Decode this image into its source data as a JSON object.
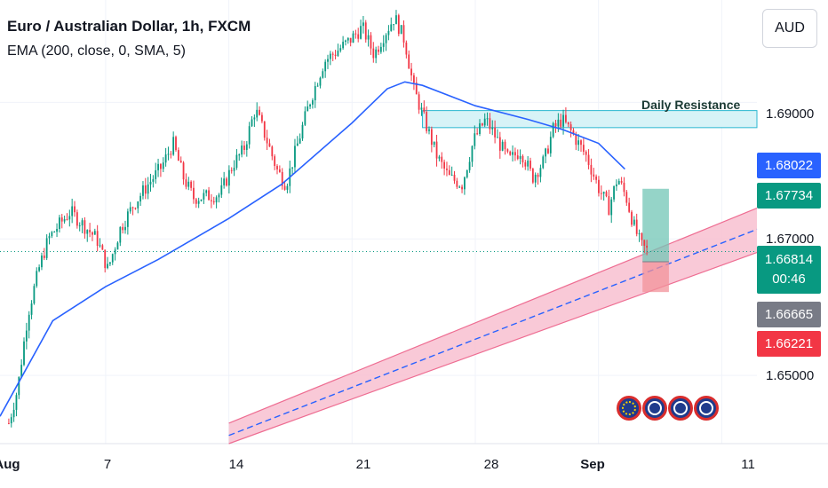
{
  "header": {
    "title": "Euro / Australian Dollar, 1h, FXCM",
    "indicator": "EMA (200, close, 0, SMA, 5)",
    "currency": "AUD"
  },
  "annotation": {
    "daily_resistance": "Daily Resistance"
  },
  "price_tags": {
    "ema": "1.68022",
    "target": "1.67734",
    "last": "1.66814",
    "countdown": "00:46",
    "entry": "1.66665",
    "stop": "1.66221"
  },
  "price_labels": [
    "1.69000",
    "1.67000",
    "1.65000"
  ],
  "time_labels": {
    "aug": "Aug",
    "d7": "7",
    "d14": "14",
    "d21": "21",
    "d28": "28",
    "sep": "Sep",
    "d11": "11"
  },
  "chart_data": {
    "type": "candlestick",
    "symbol": "EURAUD",
    "interval": "1h",
    "y_axis": {
      "min": 1.64,
      "max": 1.705
    },
    "x_axis": {
      "start": "2023-08-01",
      "end": "2023-09-13"
    },
    "path_points": [
      [
        "2023-08-01 12:00",
        1.643
      ],
      [
        "2023-08-02 00:00",
        1.648
      ],
      [
        "2023-08-02 14:00",
        1.659
      ],
      [
        "2023-08-03 06:00",
        1.666
      ],
      [
        "2023-08-03 18:00",
        1.67
      ],
      [
        "2023-08-04 08:00",
        1.672
      ],
      [
        "2023-08-05 00:00",
        1.674
      ],
      [
        "2023-08-06 12:00",
        1.67
      ],
      [
        "2023-08-07 03:00",
        1.6655
      ],
      [
        "2023-08-07 20:00",
        1.6715
      ],
      [
        "2023-08-08 14:00",
        1.675
      ],
      [
        "2023-08-09 10:00",
        1.678
      ],
      [
        "2023-08-10 04:00",
        1.6805
      ],
      [
        "2023-08-10 20:00",
        1.684
      ],
      [
        "2023-08-11 10:00",
        1.679
      ],
      [
        "2023-08-12 00:00",
        1.676
      ],
      [
        "2023-08-13 12:00",
        1.6765
      ],
      [
        "2023-08-14 06:00",
        1.681
      ],
      [
        "2023-08-14 20:00",
        1.683
      ],
      [
        "2023-08-15 12:00",
        1.689
      ],
      [
        "2023-08-16 02:00",
        1.685
      ],
      [
        "2023-08-16 18:00",
        1.68
      ],
      [
        "2023-08-17 06:00",
        1.678
      ],
      [
        "2023-08-17 22:00",
        1.684
      ],
      [
        "2023-08-18 14:00",
        1.69
      ],
      [
        "2023-08-19 10:00",
        1.696
      ],
      [
        "2023-08-20 20:00",
        1.699
      ],
      [
        "2023-08-21 14:00",
        1.701
      ],
      [
        "2023-08-22 06:00",
        1.697
      ],
      [
        "2023-08-22 20:00",
        1.7
      ],
      [
        "2023-08-23 10:00",
        1.7025
      ],
      [
        "2023-08-24 00:00",
        1.699
      ],
      [
        "2023-08-24 12:00",
        1.692
      ],
      [
        "2023-08-25 04:00",
        1.687
      ],
      [
        "2023-08-25 20:00",
        1.682
      ],
      [
        "2023-08-26 12:00",
        1.679
      ],
      [
        "2023-08-27 06:00",
        1.678
      ],
      [
        "2023-08-27 22:00",
        1.6845
      ],
      [
        "2023-08-28 14:00",
        1.6875
      ],
      [
        "2023-08-29 06:00",
        1.6845
      ],
      [
        "2023-08-29 22:00",
        1.6815
      ],
      [
        "2023-08-30 14:00",
        1.683
      ],
      [
        "2023-08-31 06:00",
        1.679
      ],
      [
        "2023-08-31 22:00",
        1.6815
      ],
      [
        "2023-09-01 10:00",
        1.686
      ],
      [
        "2023-09-01 22:00",
        1.6875
      ],
      [
        "2023-09-02 12:00",
        1.6855
      ],
      [
        "2023-09-03 08:00",
        1.682
      ],
      [
        "2023-09-04 00:00",
        1.6775
      ],
      [
        "2023-09-04 14:00",
        1.6745
      ],
      [
        "2023-09-05 02:00",
        1.679
      ],
      [
        "2023-09-05 14:00",
        1.676
      ],
      [
        "2023-09-06 00:00",
        1.672
      ],
      [
        "2023-09-06 10:00",
        1.669
      ],
      [
        "2023-09-06 20:00",
        1.66814
      ]
    ],
    "ema_200": [
      [
        "2023-08-01 00:00",
        1.644
      ],
      [
        "2023-08-04 00:00",
        1.658
      ],
      [
        "2023-08-07 00:00",
        1.663
      ],
      [
        "2023-08-10 00:00",
        1.667
      ],
      [
        "2023-08-14 00:00",
        1.673
      ],
      [
        "2023-08-17 00:00",
        1.678
      ],
      [
        "2023-08-21 00:00",
        1.687
      ],
      [
        "2023-08-23 00:00",
        1.692
      ],
      [
        "2023-08-24 00:00",
        1.693
      ],
      [
        "2023-08-25 00:00",
        1.6925
      ],
      [
        "2023-08-28 00:00",
        1.6895
      ],
      [
        "2023-08-31 00:00",
        1.6875
      ],
      [
        "2023-09-02 00:00",
        1.686
      ],
      [
        "2023-09-04 00:00",
        1.684
      ],
      [
        "2023-09-05 12:00",
        1.68022
      ]
    ],
    "daily_resistance_zone": {
      "from": "2023-08-25 00:00",
      "to": "2023-09-13 00:00",
      "low": 1.6863,
      "high": 1.6888
    },
    "trend_channel": [
      {
        "date": "2023-08-14 00:00",
        "low": 1.64,
        "mid": 1.6412,
        "high": 1.643
      },
      {
        "date": "2023-09-13 00:00",
        "low": 1.668,
        "mid": 1.6714,
        "high": 1.6745
      }
    ],
    "long_position": {
      "from": "2023-09-06 12:00",
      "to": "2023-09-08 00:00",
      "target": 1.67734,
      "entry": 1.66665,
      "stop": 1.66221,
      "last": 1.66814
    }
  },
  "colors": {
    "up": "#089981",
    "down": "#f23645",
    "ema": "#2962ff",
    "resistance_fill": "#d7f3f7",
    "resistance_border": "#2bb7d0",
    "channel_fill": "#f8bfd0",
    "channel_border": "#ee6d92",
    "profit": "#71c5b5",
    "loss": "#f2919a",
    "tag_blue": "#2962ff",
    "tag_green": "#089981",
    "tag_grey": "#787b86",
    "tag_red": "#f23645"
  },
  "icons": [
    "eu-flag-icon",
    "au-flag-icon",
    "au-flag-icon",
    "au-flag-icon"
  ]
}
